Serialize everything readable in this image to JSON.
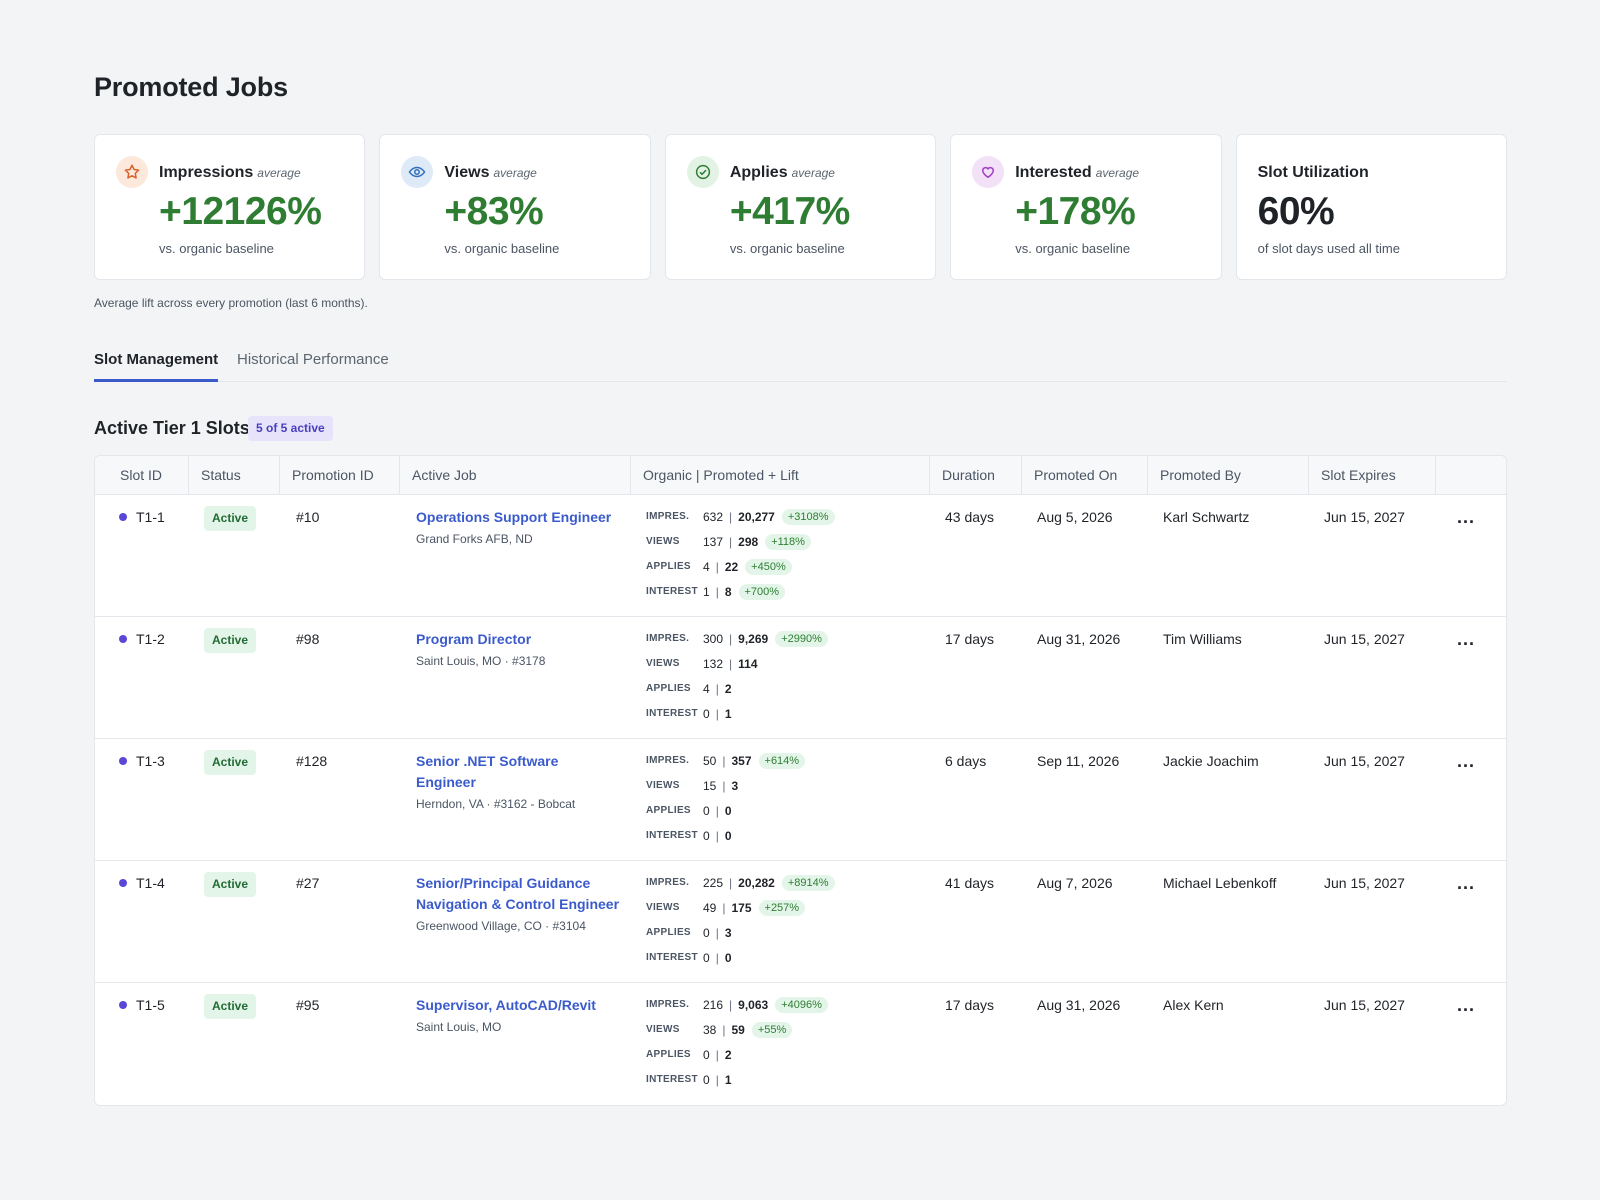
{
  "page": {
    "title": "Promoted Jobs"
  },
  "cards": [
    {
      "title": "Impressions",
      "subtitle": "average",
      "value": "+12126%",
      "note": "vs. organic baseline",
      "icon": "star-icon",
      "icon_bg": "#fde8dc",
      "icon_color": "#d9622b"
    },
    {
      "title": "Views",
      "subtitle": "average",
      "value": "+83%",
      "note": "vs. organic baseline",
      "icon": "eye-icon",
      "icon_bg": "#dfeaf8",
      "icon_color": "#2f6fb8"
    },
    {
      "title": "Applies",
      "subtitle": "average",
      "value": "+417%",
      "note": "vs. organic baseline",
      "icon": "check-circle-icon",
      "icon_bg": "#e2f3e5",
      "icon_color": "#2e7d32"
    },
    {
      "title": "Interested",
      "subtitle": "average",
      "value": "+178%",
      "note": "vs. organic baseline",
      "icon": "heart-hand-icon",
      "icon_bg": "#f3e1f8",
      "icon_color": "#a23cc7"
    },
    {
      "title": "Slot Utilization",
      "subtitle": "",
      "value": "60%",
      "note": "of slot days used all time"
    }
  ],
  "lift_note": "Average lift across every promotion (last 6 months).",
  "tabs": [
    {
      "label": "Slot Management",
      "active": true
    },
    {
      "label": "Historical Performance",
      "active": false
    }
  ],
  "section": {
    "title": "Active Tier 1 Slots",
    "badge": "5 of 5 active"
  },
  "table": {
    "headers": [
      "Slot ID",
      "Status",
      "Promotion ID",
      "Active Job",
      "Organic | Promoted + Lift",
      "Duration",
      "Promoted On",
      "Promoted By",
      "Slot Expires",
      ""
    ],
    "metric_labels": [
      "IMPRES.",
      "VIEWS",
      "APPLIES",
      "INTEREST"
    ],
    "rows": [
      {
        "slot_id": "T1-1",
        "status": "Active",
        "promotion_id": "#10",
        "job_title": "Operations Support Engineer",
        "job_location": "Grand Forks AFB, ND",
        "metrics": [
          {
            "organic": "632",
            "promoted": "20,277",
            "lift": "+3108%"
          },
          {
            "organic": "137",
            "promoted": "298",
            "lift": "+118%"
          },
          {
            "organic": "4",
            "promoted": "22",
            "lift": "+450%"
          },
          {
            "organic": "1",
            "promoted": "8",
            "lift": "+700%"
          }
        ],
        "duration": "43 days",
        "promoted_on": "Aug 5, 2026",
        "promoted_by": "Karl Schwartz",
        "slot_expires": "Jun 15, 2027",
        "more": "..."
      },
      {
        "slot_id": "T1-2",
        "status": "Active",
        "promotion_id": "#98",
        "job_title": "Program Director",
        "job_location": "Saint Louis, MO · #3178",
        "metrics": [
          {
            "organic": "300",
            "promoted": "9,269",
            "lift": "+2990%"
          },
          {
            "organic": "132",
            "promoted": "114",
            "lift": ""
          },
          {
            "organic": "4",
            "promoted": "2",
            "lift": ""
          },
          {
            "organic": "0",
            "promoted": "1",
            "lift": ""
          }
        ],
        "duration": "17 days",
        "promoted_on": "Aug 31, 2026",
        "promoted_by": "Tim Williams",
        "slot_expires": "Jun 15, 2027",
        "more": "..."
      },
      {
        "slot_id": "T1-3",
        "status": "Active",
        "promotion_id": "#128",
        "job_title": "Senior .NET Software Engineer",
        "job_location": "Herndon, VA · #3162 - Bobcat",
        "metrics": [
          {
            "organic": "50",
            "promoted": "357",
            "lift": "+614%"
          },
          {
            "organic": "15",
            "promoted": "3",
            "lift": ""
          },
          {
            "organic": "0",
            "promoted": "0",
            "lift": ""
          },
          {
            "organic": "0",
            "promoted": "0",
            "lift": ""
          }
        ],
        "duration": "6 days",
        "promoted_on": "Sep 11, 2026",
        "promoted_by": "Jackie Joachim",
        "slot_expires": "Jun 15, 2027",
        "more": "..."
      },
      {
        "slot_id": "T1-4",
        "status": "Active",
        "promotion_id": "#27",
        "job_title": "Senior/Principal Guidance Navigation & Control Engineer",
        "job_location": "Greenwood Village, CO · #3104",
        "metrics": [
          {
            "organic": "225",
            "promoted": "20,282",
            "lift": "+8914%"
          },
          {
            "organic": "49",
            "promoted": "175",
            "lift": "+257%"
          },
          {
            "organic": "0",
            "promoted": "3",
            "lift": ""
          },
          {
            "organic": "0",
            "promoted": "0",
            "lift": ""
          }
        ],
        "duration": "41 days",
        "promoted_on": "Aug 7, 2026",
        "promoted_by": "Michael Lebenkoff",
        "slot_expires": "Jun 15, 2027",
        "more": "..."
      },
      {
        "slot_id": "T1-5",
        "status": "Active",
        "promotion_id": "#95",
        "job_title": "Supervisor, AutoCAD/Revit",
        "job_location": "Saint Louis, MO",
        "metrics": [
          {
            "organic": "216",
            "promoted": "9,063",
            "lift": "+4096%"
          },
          {
            "organic": "38",
            "promoted": "59",
            "lift": "+55%"
          },
          {
            "organic": "0",
            "promoted": "2",
            "lift": ""
          },
          {
            "organic": "0",
            "promoted": "1",
            "lift": ""
          }
        ],
        "duration": "17 days",
        "promoted_on": "Aug 31, 2026",
        "promoted_by": "Alex Kern",
        "slot_expires": "Jun 15, 2027",
        "more": "..."
      }
    ]
  },
  "colors": {
    "accent": "#3b5bcc",
    "positive": "#2e7d32",
    "slot_dot": "#5b47d6"
  }
}
